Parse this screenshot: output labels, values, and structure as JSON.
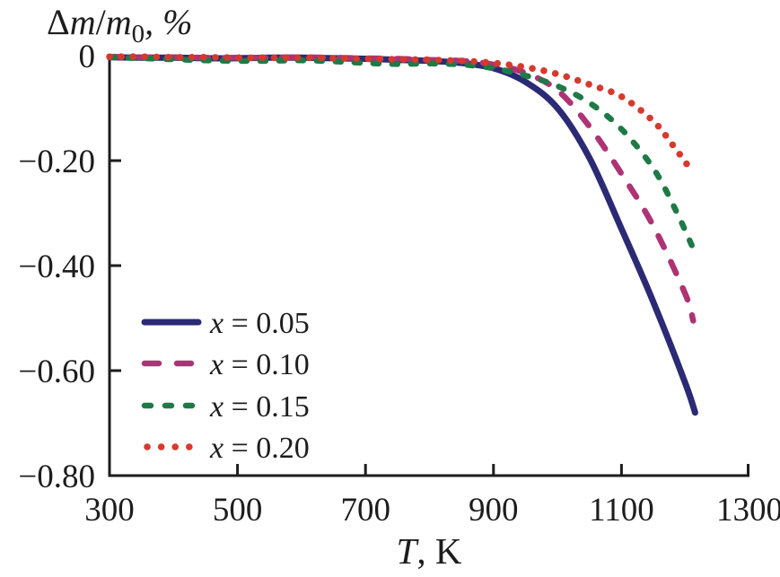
{
  "figure": {
    "background": "#ffffff",
    "ink_color": "#1d1d1d",
    "y_axis_title_parts": {
      "delta": "Δ",
      "m1": "m",
      "slash": "/",
      "m2": "m",
      "sub": "0",
      "suffix": ", %"
    },
    "x_axis_title_parts": {
      "var": "T",
      "suffix": ", K"
    }
  },
  "chart_data": {
    "type": "line",
    "title": "",
    "xlabel": "T, K",
    "ylabel": "Δm/m0, %",
    "xlim": [
      300,
      1300
    ],
    "ylim": [
      -0.8,
      0
    ],
    "grid": false,
    "legend_position": "inside lower-left",
    "x_ticks": [
      300,
      500,
      700,
      900,
      1100,
      1300
    ],
    "x_tick_labels": [
      "300",
      "500",
      "700",
      "900",
      "1100",
      "1300"
    ],
    "y_ticks": [
      0,
      -0.2,
      -0.4,
      -0.6,
      -0.8
    ],
    "y_tick_labels": [
      "0",
      "−0.20",
      "−0.40",
      "−0.60",
      "−0.80"
    ],
    "series": [
      {
        "name": "x = 0.05",
        "style": "solid",
        "color": "#2a2a75",
        "points": [
          [
            300,
            -0.003
          ],
          [
            350,
            -0.004
          ],
          [
            400,
            -0.004
          ],
          [
            450,
            -0.005
          ],
          [
            500,
            -0.005
          ],
          [
            550,
            -0.004
          ],
          [
            600,
            -0.004
          ],
          [
            650,
            -0.005
          ],
          [
            700,
            -0.006
          ],
          [
            750,
            -0.008
          ],
          [
            800,
            -0.01
          ],
          [
            850,
            -0.014
          ],
          [
            900,
            -0.024
          ],
          [
            950,
            -0.05
          ],
          [
            1000,
            -0.1
          ],
          [
            1050,
            -0.195
          ],
          [
            1100,
            -0.33
          ],
          [
            1150,
            -0.47
          ],
          [
            1200,
            -0.625
          ],
          [
            1215,
            -0.68
          ]
        ]
      },
      {
        "name": "x = 0.10",
        "style": "dashed",
        "color": "#ae3374",
        "points": [
          [
            300,
            -0.002
          ],
          [
            350,
            -0.003
          ],
          [
            400,
            -0.003
          ],
          [
            450,
            -0.004
          ],
          [
            500,
            -0.004
          ],
          [
            550,
            -0.004
          ],
          [
            600,
            -0.003
          ],
          [
            650,
            -0.004
          ],
          [
            700,
            -0.005
          ],
          [
            750,
            -0.006
          ],
          [
            800,
            -0.008
          ],
          [
            850,
            -0.01
          ],
          [
            900,
            -0.017
          ],
          [
            950,
            -0.033
          ],
          [
            1000,
            -0.066
          ],
          [
            1050,
            -0.135
          ],
          [
            1100,
            -0.225
          ],
          [
            1150,
            -0.325
          ],
          [
            1200,
            -0.455
          ],
          [
            1212,
            -0.505
          ]
        ]
      },
      {
        "name": "x = 0.15",
        "style": "short-dashed",
        "color": "#1f7a47",
        "points": [
          [
            300,
            -0.003
          ],
          [
            350,
            -0.005
          ],
          [
            400,
            -0.007
          ],
          [
            450,
            -0.009
          ],
          [
            500,
            -0.01
          ],
          [
            550,
            -0.01
          ],
          [
            600,
            -0.009
          ],
          [
            650,
            -0.011
          ],
          [
            700,
            -0.014
          ],
          [
            750,
            -0.016
          ],
          [
            800,
            -0.015
          ],
          [
            850,
            -0.017
          ],
          [
            900,
            -0.024
          ],
          [
            950,
            -0.038
          ],
          [
            1000,
            -0.058
          ],
          [
            1050,
            -0.09
          ],
          [
            1100,
            -0.14
          ],
          [
            1150,
            -0.215
          ],
          [
            1185,
            -0.295
          ],
          [
            1213,
            -0.37
          ]
        ]
      },
      {
        "name": "x = 0.20",
        "style": "dotted",
        "color": "#d63a2e",
        "points": [
          [
            300,
            -0.002
          ],
          [
            350,
            -0.002
          ],
          [
            400,
            -0.003
          ],
          [
            450,
            -0.003
          ],
          [
            500,
            -0.004
          ],
          [
            550,
            -0.004
          ],
          [
            600,
            -0.004
          ],
          [
            650,
            -0.005
          ],
          [
            700,
            -0.006
          ],
          [
            750,
            -0.007
          ],
          [
            800,
            -0.008
          ],
          [
            850,
            -0.01
          ],
          [
            900,
            -0.014
          ],
          [
            950,
            -0.022
          ],
          [
            1000,
            -0.035
          ],
          [
            1050,
            -0.055
          ],
          [
            1100,
            -0.078
          ],
          [
            1150,
            -0.125
          ],
          [
            1180,
            -0.17
          ],
          [
            1210,
            -0.22
          ]
        ]
      }
    ]
  },
  "legend": {
    "items": [
      {
        "var": "x",
        "value_text": " = 0.05"
      },
      {
        "var": "x",
        "value_text": " = 0.10"
      },
      {
        "var": "x",
        "value_text": " = 0.15"
      },
      {
        "var": "x",
        "value_text": " = 0.20"
      }
    ]
  }
}
